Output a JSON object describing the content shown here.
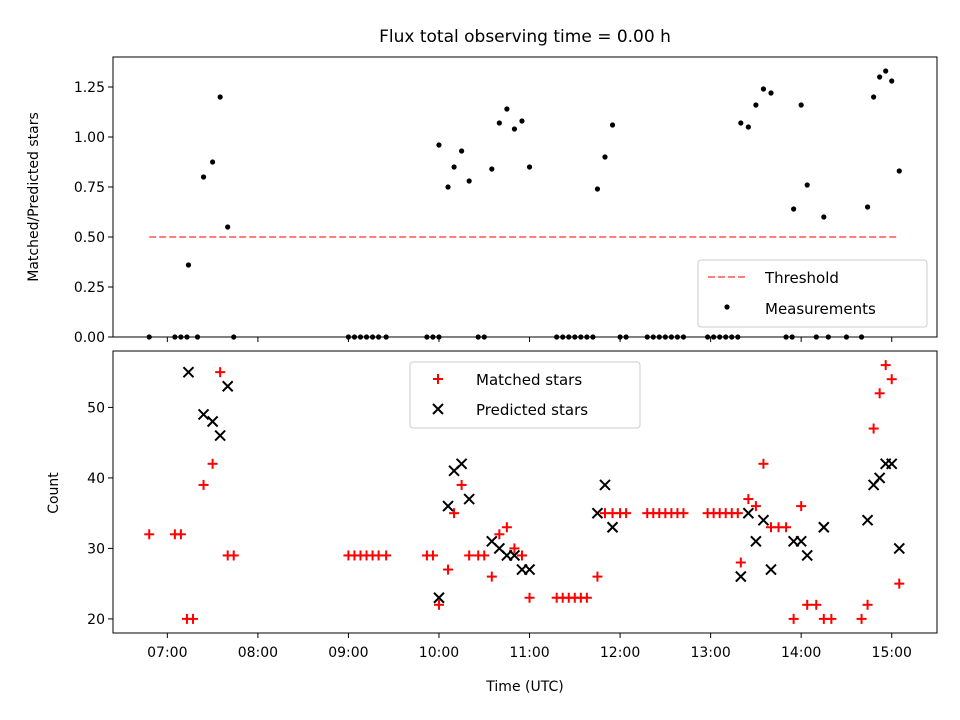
{
  "chart_data": [
    {
      "type": "scatter",
      "title": "Flux total observing time = 0.00 h",
      "xlabel": "",
      "ylabel": "Matched/Predicted stars",
      "xlim": [
        "06:24",
        "15:30"
      ],
      "ylim": [
        0.0,
        1.4
      ],
      "yticks": [
        {
          "v": 0.0,
          "label": "0.00"
        },
        {
          "v": 0.25,
          "label": "0.25"
        },
        {
          "v": 0.5,
          "label": "0.50"
        },
        {
          "v": 0.75,
          "label": "0.75"
        },
        {
          "v": 1.0,
          "label": "1.00"
        },
        {
          "v": 1.25,
          "label": "1.25"
        }
      ],
      "xtick_labels_visible": false,
      "threshold": {
        "name": "Threshold",
        "value": 0.5,
        "x_start": "06:48",
        "x_end": "15:05",
        "color": "#ff7f7f"
      },
      "legend": {
        "position": "lower-right",
        "entries": [
          "Threshold",
          "Measurements"
        ]
      },
      "series": [
        {
          "name": "Measurements",
          "color": "#000000",
          "points": [
            [
              "06:48",
              0.0
            ],
            [
              "07:05",
              0.0
            ],
            [
              "07:09",
              0.0
            ],
            [
              "07:13",
              0.0
            ],
            [
              "07:14",
              0.36
            ],
            [
              "07:20",
              0.0
            ],
            [
              "07:24",
              0.8
            ],
            [
              "07:30",
              0.875
            ],
            [
              "07:35",
              1.2
            ],
            [
              "07:40",
              0.55
            ],
            [
              "07:44",
              0.0
            ],
            [
              "09:00",
              0.0
            ],
            [
              "09:04",
              0.0
            ],
            [
              "09:08",
              0.0
            ],
            [
              "09:12",
              0.0
            ],
            [
              "09:16",
              0.0
            ],
            [
              "09:20",
              0.0
            ],
            [
              "09:25",
              0.0
            ],
            [
              "09:52",
              0.0
            ],
            [
              "09:56",
              0.0
            ],
            [
              "10:00",
              0.0
            ],
            [
              "10:00",
              0.96
            ],
            [
              "10:06",
              0.75
            ],
            [
              "10:10",
              0.85
            ],
            [
              "10:15",
              0.93
            ],
            [
              "10:20",
              0.78
            ],
            [
              "10:26",
              0.0
            ],
            [
              "10:30",
              0.0
            ],
            [
              "10:35",
              0.84
            ],
            [
              "10:40",
              1.07
            ],
            [
              "10:45",
              1.14
            ],
            [
              "10:50",
              1.04
            ],
            [
              "10:55",
              1.08
            ],
            [
              "11:00",
              0.85
            ],
            [
              "11:18",
              0.0
            ],
            [
              "11:22",
              0.0
            ],
            [
              "11:26",
              0.0
            ],
            [
              "11:30",
              0.0
            ],
            [
              "11:34",
              0.0
            ],
            [
              "11:38",
              0.0
            ],
            [
              "11:42",
              0.0
            ],
            [
              "11:45",
              0.74
            ],
            [
              "11:50",
              0.9
            ],
            [
              "11:55",
              1.06
            ],
            [
              "12:00",
              0.0
            ],
            [
              "12:04",
              0.0
            ],
            [
              "12:18",
              0.0
            ],
            [
              "12:22",
              0.0
            ],
            [
              "12:26",
              0.0
            ],
            [
              "12:30",
              0.0
            ],
            [
              "12:34",
              0.0
            ],
            [
              "12:38",
              0.0
            ],
            [
              "12:42",
              0.0
            ],
            [
              "12:58",
              0.0
            ],
            [
              "13:02",
              0.0
            ],
            [
              "13:06",
              0.0
            ],
            [
              "13:10",
              0.0
            ],
            [
              "13:14",
              0.0
            ],
            [
              "13:18",
              0.0
            ],
            [
              "13:20",
              1.07
            ],
            [
              "13:25",
              1.05
            ],
            [
              "13:30",
              1.16
            ],
            [
              "13:35",
              1.24
            ],
            [
              "13:40",
              1.22
            ],
            [
              "13:50",
              0.0
            ],
            [
              "13:54",
              0.0
            ],
            [
              "13:55",
              0.64
            ],
            [
              "14:00",
              1.16
            ],
            [
              "14:04",
              0.76
            ],
            [
              "14:10",
              0.0
            ],
            [
              "14:15",
              0.6
            ],
            [
              "14:18",
              0.0
            ],
            [
              "14:30",
              0.0
            ],
            [
              "14:40",
              0.0
            ],
            [
              "14:44",
              0.65
            ],
            [
              "14:48",
              1.2
            ],
            [
              "14:52",
              1.3
            ],
            [
              "14:56",
              1.33
            ],
            [
              "15:00",
              1.28
            ],
            [
              "15:05",
              0.83
            ]
          ]
        }
      ]
    },
    {
      "type": "scatter",
      "title": "",
      "xlabel": "Time (UTC)",
      "ylabel": "Count",
      "xlim": [
        "06:24",
        "15:30"
      ],
      "ylim": [
        18,
        58
      ],
      "yticks": [
        {
          "v": 20,
          "label": "20"
        },
        {
          "v": 30,
          "label": "30"
        },
        {
          "v": 40,
          "label": "40"
        },
        {
          "v": 50,
          "label": "50"
        }
      ],
      "xticks": [
        {
          "t": "07:00",
          "label": "07:00"
        },
        {
          "t": "08:00",
          "label": "08:00"
        },
        {
          "t": "09:00",
          "label": "09:00"
        },
        {
          "t": "10:00",
          "label": "10:00"
        },
        {
          "t": "11:00",
          "label": "11:00"
        },
        {
          "t": "12:00",
          "label": "12:00"
        },
        {
          "t": "13:00",
          "label": "13:00"
        },
        {
          "t": "14:00",
          "label": "14:00"
        },
        {
          "t": "15:00",
          "label": "15:00"
        }
      ],
      "legend": {
        "position": "upper-center",
        "entries": [
          "Matched stars",
          "Predicted stars"
        ]
      },
      "series": [
        {
          "name": "Matched stars",
          "marker": "plus",
          "color": "#ff0000",
          "points": [
            [
              "06:48",
              32
            ],
            [
              "07:05",
              32
            ],
            [
              "07:09",
              32
            ],
            [
              "07:13",
              20
            ],
            [
              "07:17",
              20
            ],
            [
              "07:24",
              39
            ],
            [
              "07:30",
              42
            ],
            [
              "07:35",
              55
            ],
            [
              "07:40",
              29
            ],
            [
              "07:44",
              29
            ],
            [
              "09:00",
              29
            ],
            [
              "09:04",
              29
            ],
            [
              "09:08",
              29
            ],
            [
              "09:12",
              29
            ],
            [
              "09:16",
              29
            ],
            [
              "09:20",
              29
            ],
            [
              "09:25",
              29
            ],
            [
              "09:52",
              29
            ],
            [
              "09:56",
              29
            ],
            [
              "10:00",
              22
            ],
            [
              "10:06",
              27
            ],
            [
              "10:10",
              35
            ],
            [
              "10:15",
              39
            ],
            [
              "10:20",
              29
            ],
            [
              "10:26",
              29
            ],
            [
              "10:30",
              29
            ],
            [
              "10:35",
              26
            ],
            [
              "10:40",
              32
            ],
            [
              "10:45",
              33
            ],
            [
              "10:50",
              30
            ],
            [
              "10:55",
              29
            ],
            [
              "11:00",
              23
            ],
            [
              "11:18",
              23
            ],
            [
              "11:22",
              23
            ],
            [
              "11:26",
              23
            ],
            [
              "11:30",
              23
            ],
            [
              "11:34",
              23
            ],
            [
              "11:38",
              23
            ],
            [
              "11:45",
              26
            ],
            [
              "11:50",
              35
            ],
            [
              "11:55",
              35
            ],
            [
              "12:00",
              35
            ],
            [
              "12:04",
              35
            ],
            [
              "12:18",
              35
            ],
            [
              "12:22",
              35
            ],
            [
              "12:26",
              35
            ],
            [
              "12:30",
              35
            ],
            [
              "12:34",
              35
            ],
            [
              "12:38",
              35
            ],
            [
              "12:42",
              35
            ],
            [
              "12:58",
              35
            ],
            [
              "13:02",
              35
            ],
            [
              "13:06",
              35
            ],
            [
              "13:10",
              35
            ],
            [
              "13:14",
              35
            ],
            [
              "13:18",
              35
            ],
            [
              "13:20",
              28
            ],
            [
              "13:25",
              37
            ],
            [
              "13:30",
              36
            ],
            [
              "13:35",
              42
            ],
            [
              "13:40",
              33
            ],
            [
              "13:45",
              33
            ],
            [
              "13:50",
              33
            ],
            [
              "13:55",
              20
            ],
            [
              "14:00",
              36
            ],
            [
              "14:04",
              22
            ],
            [
              "14:10",
              22
            ],
            [
              "14:15",
              20
            ],
            [
              "14:20",
              20
            ],
            [
              "14:40",
              20
            ],
            [
              "14:44",
              22
            ],
            [
              "14:48",
              47
            ],
            [
              "14:52",
              52
            ],
            [
              "14:56",
              56
            ],
            [
              "15:00",
              54
            ],
            [
              "15:05",
              25
            ]
          ]
        },
        {
          "name": "Predicted stars",
          "marker": "x",
          "color": "#000000",
          "points": [
            [
              "07:14",
              55
            ],
            [
              "07:24",
              49
            ],
            [
              "07:30",
              48
            ],
            [
              "07:35",
              46
            ],
            [
              "07:40",
              53
            ],
            [
              "10:00",
              23
            ],
            [
              "10:06",
              36
            ],
            [
              "10:10",
              41
            ],
            [
              "10:15",
              42
            ],
            [
              "10:20",
              37
            ],
            [
              "10:35",
              31
            ],
            [
              "10:40",
              30
            ],
            [
              "10:45",
              29
            ],
            [
              "10:50",
              29
            ],
            [
              "10:55",
              27
            ],
            [
              "11:00",
              27
            ],
            [
              "11:45",
              35
            ],
            [
              "11:50",
              39
            ],
            [
              "11:55",
              33
            ],
            [
              "13:20",
              26
            ],
            [
              "13:25",
              35
            ],
            [
              "13:30",
              31
            ],
            [
              "13:35",
              34
            ],
            [
              "13:40",
              27
            ],
            [
              "13:55",
              31
            ],
            [
              "14:00",
              31
            ],
            [
              "14:04",
              29
            ],
            [
              "14:15",
              33
            ],
            [
              "14:44",
              34
            ],
            [
              "14:48",
              39
            ],
            [
              "14:52",
              40
            ],
            [
              "14:56",
              42
            ],
            [
              "15:00",
              42
            ],
            [
              "15:05",
              30
            ]
          ]
        }
      ]
    }
  ]
}
